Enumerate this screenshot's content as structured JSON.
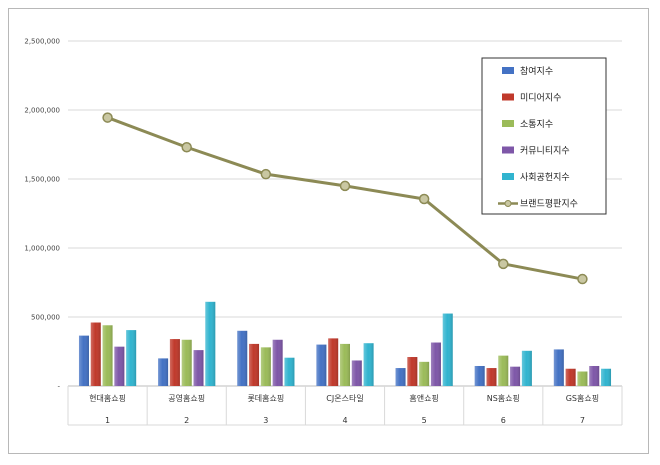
{
  "chart_data": {
    "type": "bar",
    "categories": [
      "현대홈쇼핑",
      "공영홈쇼핑",
      "롯데홈쇼핑",
      "CJ온스타일",
      "홈앤쇼핑",
      "NS홈쇼핑",
      "GS홈쇼핑"
    ],
    "ranks": [
      "1",
      "2",
      "3",
      "4",
      "5",
      "6",
      "7"
    ],
    "ylim": [
      0,
      2500000
    ],
    "yticks": [
      "-",
      "500,000",
      "1,000,000",
      "1,500,000",
      "2,000,000",
      "2,500,000"
    ],
    "ytick_values": [
      0,
      500000,
      1000000,
      1500000,
      2000000,
      2500000
    ],
    "grid": true,
    "legend_placement": "top-right",
    "series": [
      {
        "name": "참여지수",
        "color": "#4472c4",
        "values": [
          365000,
          200000,
          400000,
          300000,
          130000,
          145000,
          265000
        ]
      },
      {
        "name": "미디어지수",
        "color": "#c0392b",
        "values": [
          460000,
          340000,
          305000,
          345000,
          210000,
          130000,
          125000
        ]
      },
      {
        "name": "소통지수",
        "color": "#9bbb59",
        "values": [
          440000,
          335000,
          280000,
          305000,
          175000,
          220000,
          105000
        ]
      },
      {
        "name": "커뮤니티지수",
        "color": "#7e57a8",
        "values": [
          285000,
          260000,
          335000,
          185000,
          315000,
          140000,
          145000
        ]
      },
      {
        "name": "사회공헌지수",
        "color": "#31b4cf",
        "values": [
          405000,
          610000,
          205000,
          310000,
          525000,
          255000,
          125000
        ]
      }
    ],
    "line_series": {
      "name": "브랜드평판지수",
      "color": "#8c8a55",
      "values": [
        1945000,
        1730000,
        1535000,
        1450000,
        1355000,
        885000,
        775000
      ]
    }
  }
}
